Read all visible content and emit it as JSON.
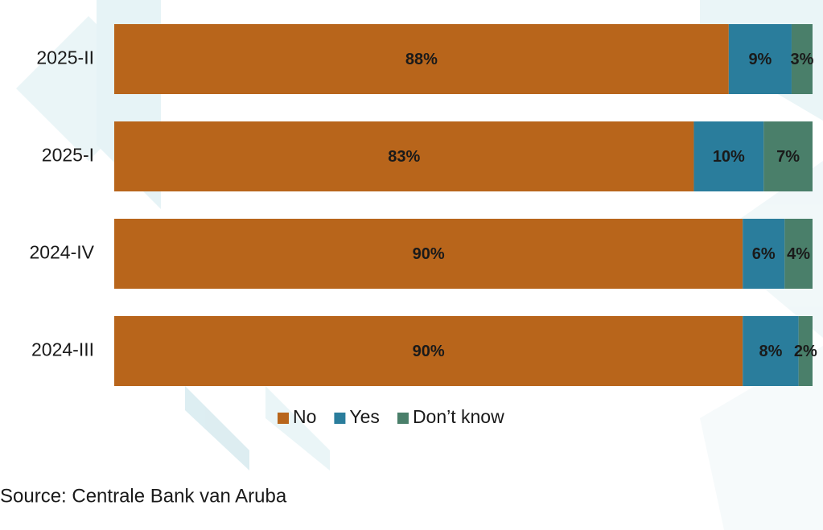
{
  "chart_data": {
    "type": "stacked-bar-horizontal",
    "categories": [
      "2025-II",
      "2025-I",
      "2024-IV",
      "2024-III"
    ],
    "series": [
      {
        "name": "No",
        "color": "#b8651b",
        "values": [
          88,
          83,
          90,
          90
        ],
        "value_labels": [
          "88%",
          "83%",
          "90%",
          "90%"
        ]
      },
      {
        "name": "Yes",
        "color": "#2a7d9c",
        "values": [
          9,
          10,
          6,
          8
        ],
        "value_labels": [
          "9%",
          "10%",
          "6%",
          "8%"
        ]
      },
      {
        "name": "Don’t know",
        "color": "#4a7f6a",
        "values": [
          3,
          7,
          4,
          2
        ],
        "value_labels": [
          "3%",
          "7%",
          "4%",
          "2%"
        ]
      }
    ],
    "xlim": [
      0,
      100
    ],
    "source": "Source: Centrale Bank van Aruba"
  }
}
